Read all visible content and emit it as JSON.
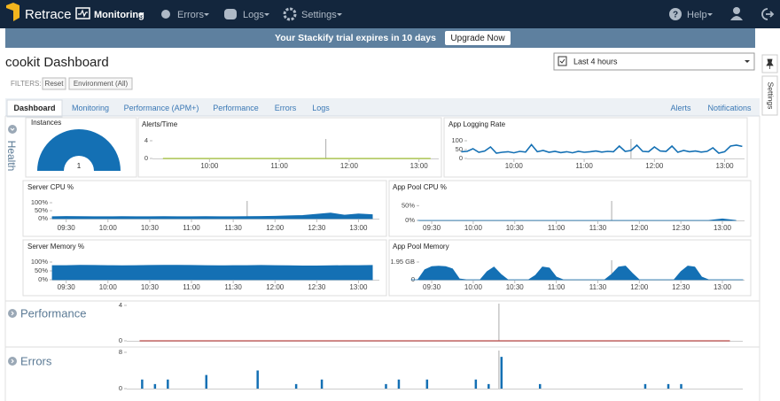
{
  "nav": {
    "brand": "Retrace",
    "items": [
      "Monitoring",
      "Errors",
      "Logs",
      "Settings"
    ],
    "help": "Help"
  },
  "banner": {
    "text": "Your Stackify trial expires in 10 days",
    "button": "Upgrade Now"
  },
  "dashboard": {
    "title": "cookit Dashboard",
    "time_range": "Last 4 hours",
    "filters_label": "FILTERS:",
    "filters": [
      "Reset",
      "Environment (All)"
    ]
  },
  "tabs": {
    "left": [
      "Dashboard",
      "Monitoring",
      "Performance (APM+)",
      "Performance",
      "Errors",
      "Logs"
    ],
    "right": [
      "Alerts",
      "Notifications"
    ]
  },
  "sidebar": {
    "settings": "Settings"
  },
  "sections": [
    "Health",
    "Performance",
    "Errors"
  ],
  "chart_data": [
    {
      "type": "gauge",
      "title": "Instances",
      "value": 1,
      "ylim": [
        0,
        1
      ],
      "color": "#1470b4"
    },
    {
      "type": "line",
      "title": "Alerts/Time",
      "xlim": [
        551,
        797
      ],
      "ylim": [
        0,
        4
      ],
      "yticks": [
        0,
        4
      ],
      "xticks": [
        {
          "value": 600,
          "label": "10:00"
        },
        {
          "value": 660,
          "label": "11:00"
        },
        {
          "value": 720,
          "label": "12:00"
        },
        {
          "value": 780,
          "label": "13:00"
        }
      ],
      "marker_x": 700,
      "color": "#a9c63c",
      "x": [
        560,
        570,
        580,
        590,
        600,
        610,
        620,
        630,
        640,
        650,
        660,
        670,
        680,
        690,
        700,
        710,
        720,
        730,
        740,
        750,
        760,
        770,
        780,
        790
      ],
      "values": [
        0,
        0,
        0,
        0,
        0,
        0,
        0,
        0,
        0,
        0,
        0,
        0,
        0,
        0,
        0,
        0,
        0,
        0,
        0,
        0,
        0,
        0,
        0,
        0
      ]
    },
    {
      "type": "line",
      "title": "App Logging Rate",
      "xlim": [
        560,
        797
      ],
      "ylim": [
        0,
        100
      ],
      "yticks": [
        0,
        50,
        100
      ],
      "xticks": [
        {
          "value": 600,
          "label": "10:00"
        },
        {
          "value": 660,
          "label": "11:00"
        },
        {
          "value": 720,
          "label": "12:00"
        },
        {
          "value": 780,
          "label": "13:00"
        }
      ],
      "marker_x": 700,
      "color": "#1470b4",
      "x": [
        555,
        560,
        565,
        570,
        575,
        580,
        585,
        590,
        595,
        600,
        605,
        610,
        615,
        620,
        625,
        630,
        635,
        640,
        645,
        650,
        655,
        660,
        665,
        670,
        675,
        680,
        685,
        690,
        695,
        700,
        705,
        710,
        715,
        720,
        725,
        730,
        735,
        740,
        745,
        750,
        755,
        760,
        765,
        770,
        775,
        780,
        785,
        790,
        795
      ],
      "values": [
        38,
        40,
        55,
        35,
        42,
        65,
        30,
        35,
        38,
        32,
        40,
        36,
        78,
        38,
        45,
        35,
        40,
        33,
        38,
        32,
        40,
        35,
        38,
        42,
        36,
        40,
        38,
        70,
        40,
        45,
        75,
        40,
        38,
        65,
        42,
        40,
        70,
        35,
        45,
        38,
        42,
        36,
        40,
        60,
        30,
        38,
        70,
        75,
        68
      ]
    },
    {
      "type": "area",
      "title": "Server CPU %",
      "xlim": [
        560,
        795
      ],
      "ylim": [
        0,
        100
      ],
      "yticks": [
        {
          "value": 0,
          "label": "0%"
        },
        {
          "value": 50,
          "label": "50%"
        },
        {
          "value": 100,
          "label": "100%"
        }
      ],
      "xticks": [
        {
          "value": 570,
          "label": "09:30"
        },
        {
          "value": 600,
          "label": "10:00"
        },
        {
          "value": 630,
          "label": "10:30"
        },
        {
          "value": 660,
          "label": "11:00"
        },
        {
          "value": 690,
          "label": "11:30"
        },
        {
          "value": 720,
          "label": "12:00"
        },
        {
          "value": 750,
          "label": "12:30"
        },
        {
          "value": 780,
          "label": "13:00"
        }
      ],
      "marker_x": 700,
      "color": "#1470b4",
      "x": [
        560,
        570,
        580,
        590,
        600,
        610,
        620,
        630,
        640,
        650,
        660,
        670,
        680,
        690,
        700,
        710,
        720,
        730,
        740,
        750,
        760,
        770,
        780,
        790
      ],
      "values": [
        12,
        14,
        13,
        12,
        12,
        13,
        12,
        12,
        13,
        12,
        12,
        13,
        12,
        12,
        13,
        14,
        15,
        18,
        20,
        28,
        35,
        22,
        30,
        25
      ]
    },
    {
      "type": "area",
      "title": "App Pool CPU %",
      "xlim": [
        561,
        796
      ],
      "ylim": [
        0,
        60
      ],
      "yticks": [
        {
          "value": 0,
          "label": "0%"
        },
        {
          "value": 50,
          "label": "50%"
        }
      ],
      "xticks": [
        {
          "value": 570,
          "label": "09:30"
        },
        {
          "value": 600,
          "label": "10:00"
        },
        {
          "value": 630,
          "label": "10:30"
        },
        {
          "value": 660,
          "label": "11:00"
        },
        {
          "value": 690,
          "label": "11:30"
        },
        {
          "value": 720,
          "label": "12:00"
        },
        {
          "value": 750,
          "label": "12:30"
        },
        {
          "value": 780,
          "label": "13:00"
        }
      ],
      "marker_x": 700,
      "color": "#1470b4",
      "x": [
        560,
        570,
        580,
        590,
        600,
        610,
        620,
        630,
        640,
        650,
        660,
        670,
        680,
        690,
        700,
        710,
        720,
        730,
        740,
        750,
        760,
        770,
        780,
        790
      ],
      "values": [
        0,
        0,
        0,
        0,
        0,
        0,
        0,
        0,
        0,
        0,
        0,
        0,
        0,
        0,
        0,
        0,
        0,
        0,
        0,
        0,
        0,
        0,
        5,
        0
      ]
    },
    {
      "type": "area",
      "title": "Server Memory %",
      "xlim": [
        560,
        795
      ],
      "ylim": [
        0,
        100
      ],
      "yticks": [
        {
          "value": 0,
          "label": "0%"
        },
        {
          "value": 50,
          "label": "50%"
        },
        {
          "value": 100,
          "label": "100%"
        }
      ],
      "xticks": [
        {
          "value": 570,
          "label": "09:30"
        },
        {
          "value": 600,
          "label": "10:00"
        },
        {
          "value": 630,
          "label": "10:30"
        },
        {
          "value": 660,
          "label": "11:00"
        },
        {
          "value": 690,
          "label": "11:30"
        },
        {
          "value": 720,
          "label": "12:00"
        },
        {
          "value": 750,
          "label": "12:30"
        },
        {
          "value": 780,
          "label": "13:00"
        }
      ],
      "color": "#1470b4",
      "x": [
        560,
        570,
        580,
        590,
        600,
        610,
        620,
        630,
        640,
        650,
        660,
        670,
        680,
        690,
        700,
        710,
        720,
        730,
        740,
        750,
        760,
        770,
        780,
        790
      ],
      "values": [
        80,
        80,
        82,
        81,
        80,
        79,
        80,
        81,
        82,
        82,
        81,
        80,
        79,
        80,
        80,
        81,
        80,
        79,
        78,
        78,
        79,
        80,
        80,
        81
      ]
    },
    {
      "type": "area",
      "title": "App Pool Memory",
      "xlim": [
        561,
        796
      ],
      "ylim": [
        0,
        1.95
      ],
      "yticks": [
        0,
        {
          "value": 1.95,
          "label": "1.95 GB"
        }
      ],
      "xticks": [
        {
          "value": 570,
          "label": "09:30"
        },
        {
          "value": 600,
          "label": "10:00"
        },
        {
          "value": 630,
          "label": "10:30"
        },
        {
          "value": 660,
          "label": "11:00"
        },
        {
          "value": 690,
          "label": "11:30"
        },
        {
          "value": 720,
          "label": "12:00"
        },
        {
          "value": 750,
          "label": "12:30"
        },
        {
          "value": 780,
          "label": "13:00"
        }
      ],
      "marker_x": 700,
      "color": "#1470b4",
      "x": [
        555,
        560,
        565,
        570,
        575,
        580,
        585,
        590,
        595,
        600,
        605,
        610,
        615,
        620,
        625,
        630,
        635,
        640,
        645,
        650,
        655,
        660,
        665,
        670,
        675,
        680,
        685,
        690,
        695,
        700,
        705,
        710,
        715,
        720,
        725,
        730,
        735,
        740,
        745,
        750,
        755,
        760,
        765,
        770,
        775,
        780,
        785,
        790,
        795
      ],
      "values": [
        0,
        0,
        1.1,
        1.45,
        1.5,
        1.45,
        1.2,
        0.1,
        0,
        0,
        0,
        0.9,
        1.4,
        0.6,
        0,
        0,
        0,
        0,
        0.5,
        1.4,
        1.3,
        0.3,
        0,
        0,
        0,
        0,
        0,
        0,
        0,
        0.6,
        1.4,
        1.5,
        0.7,
        0,
        0,
        0,
        0,
        0,
        0,
        0.9,
        1.5,
        1.4,
        0.3,
        0,
        0,
        0,
        0,
        0,
        0
      ]
    },
    {
      "type": "line",
      "xlim": [
        555,
        795
      ],
      "ylim": [
        0,
        4
      ],
      "yticks": [
        0,
        4
      ],
      "marker_x": 700,
      "color": "#c0504d",
      "x": [
        560,
        570,
        580,
        590,
        600,
        610,
        620,
        630,
        640,
        650,
        660,
        670,
        680,
        690,
        700,
        710,
        720,
        730,
        740,
        750,
        760,
        770,
        780,
        790
      ],
      "values": [
        0,
        0,
        0,
        0,
        0,
        0,
        0,
        0,
        0,
        0,
        0,
        0,
        0,
        0,
        0,
        0,
        0,
        0,
        0,
        0,
        0,
        0,
        0,
        0
      ]
    },
    {
      "type": "bar",
      "xlim": [
        555,
        795
      ],
      "ylim": [
        0,
        8
      ],
      "yticks": [
        0,
        8
      ],
      "marker_x": 700,
      "color": "#1470b4",
      "x": [
        561,
        566,
        571,
        586,
        606,
        621,
        631,
        656,
        661,
        672,
        691,
        696,
        701,
        716,
        757,
        766,
        771
      ],
      "values": [
        2,
        1,
        2,
        3,
        4,
        1,
        2,
        1,
        2,
        2,
        2,
        1,
        7,
        1,
        1,
        1,
        1
      ]
    }
  ]
}
